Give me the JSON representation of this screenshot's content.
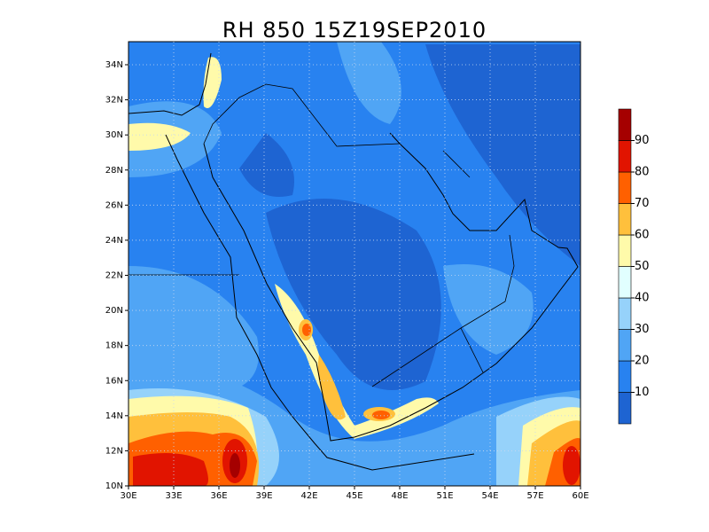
{
  "title": "RH 850 15Z19SEP2010",
  "lat_labels": [
    "10N",
    "12N",
    "14N",
    "16N",
    "18N",
    "20N",
    "22N",
    "24N",
    "26N",
    "28N",
    "30N",
    "32N",
    "34N"
  ],
  "lon_labels": [
    "30E",
    "33E",
    "36E",
    "39E",
    "42E",
    "45E",
    "48E",
    "51E",
    "54E",
    "57E",
    "60E"
  ],
  "colorbar": {
    "levels": [
      10,
      20,
      30,
      40,
      50,
      60,
      70,
      80,
      90
    ],
    "colors": [
      "#1e64d2",
      "#2882f0",
      "#50a5f5",
      "#96d2fa",
      "#e1ffff",
      "#fffaaa",
      "#ffc03c",
      "#ff6000",
      "#e11400",
      "#a50000"
    ]
  }
}
